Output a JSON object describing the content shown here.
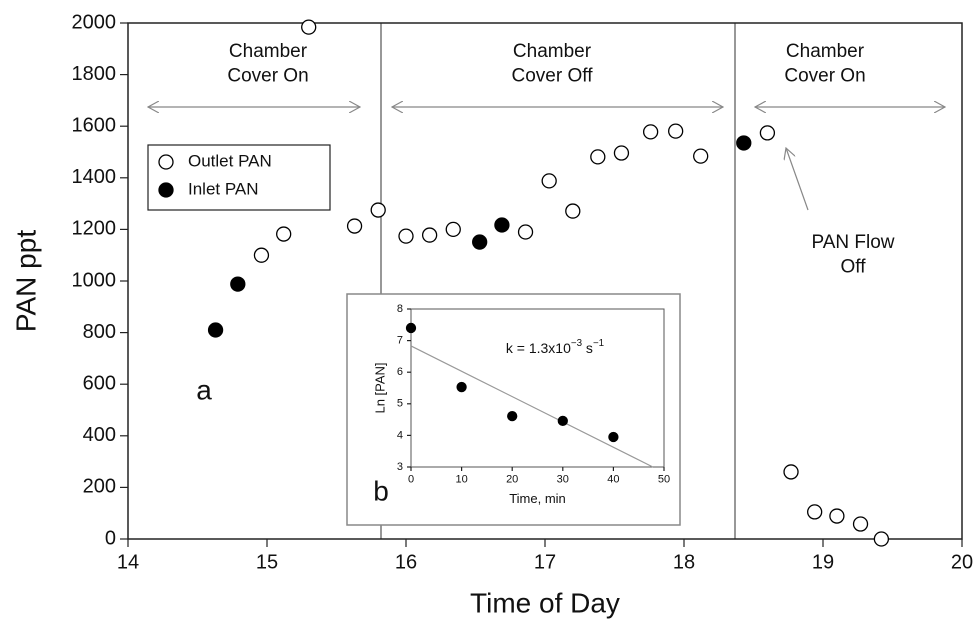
{
  "chart_data": [
    {
      "type": "scatter",
      "xlabel": "Time of Day",
      "ylabel": "PAN ppt",
      "xlim": [
        14,
        20
      ],
      "ylim": [
        0,
        2000
      ],
      "xticks": [
        14,
        15,
        16,
        17,
        18,
        19,
        20
      ],
      "yticks": [
        0,
        200,
        400,
        600,
        800,
        1000,
        1200,
        1400,
        1600,
        1800,
        2000
      ],
      "series": [
        {
          "name": "Outlet PAN",
          "color": "#000000",
          "marker": "open",
          "x": [
            14.96,
            15.12,
            15.3,
            15.63,
            15.8,
            16.0,
            16.17,
            16.34,
            16.86,
            17.03,
            17.2,
            17.38,
            17.55,
            17.76,
            17.94,
            18.12,
            18.6,
            18.77,
            18.94,
            19.1,
            19.27,
            19.42
          ],
          "values": [
            1100,
            1182,
            1984,
            1213,
            1275,
            1174,
            1178,
            1200,
            1190,
            1388,
            1271,
            1481,
            1496,
            1578,
            1581,
            1484,
            1574,
            260,
            105,
            89,
            58,
            0
          ]
        },
        {
          "name": "Inlet PAN",
          "color": "#000000",
          "marker": "filled",
          "x": [
            14.63,
            14.79,
            16.53,
            16.69,
            18.43
          ],
          "values": [
            810,
            988,
            1151,
            1217,
            1535
          ]
        }
      ],
      "annotations": [
        {
          "lines": [
            "Chamber",
            "Cover On"
          ]
        },
        {
          "lines": [
            "Chamber",
            "Cover Off"
          ]
        },
        {
          "lines": [
            "Chamber",
            "Cover On"
          ]
        },
        {
          "lines": [
            "PAN Flow",
            "Off"
          ]
        },
        {
          "lines": [
            "a"
          ]
        }
      ]
    },
    {
      "type": "scatter",
      "xlabel": "Time, min",
      "ylabel": "Ln [PAN]",
      "xlim": [
        0,
        50
      ],
      "ylim": [
        3,
        8
      ],
      "xticks": [
        0,
        10,
        20,
        30,
        40,
        50
      ],
      "yticks": [
        3,
        4,
        5,
        6,
        7,
        8
      ],
      "x": [
        0,
        10,
        20,
        30,
        40
      ],
      "values": [
        7.4,
        5.53,
        4.61,
        4.46,
        3.95
      ],
      "fit": {
        "x": [
          0,
          47.8
        ],
        "y": [
          6.83,
          3
        ]
      },
      "annotations": [
        {
          "lines": [
            "b"
          ]
        },
        {
          "parts": [
            "k = 1.3x10",
            "−3",
            " s",
            "−1"
          ]
        }
      ]
    }
  ]
}
